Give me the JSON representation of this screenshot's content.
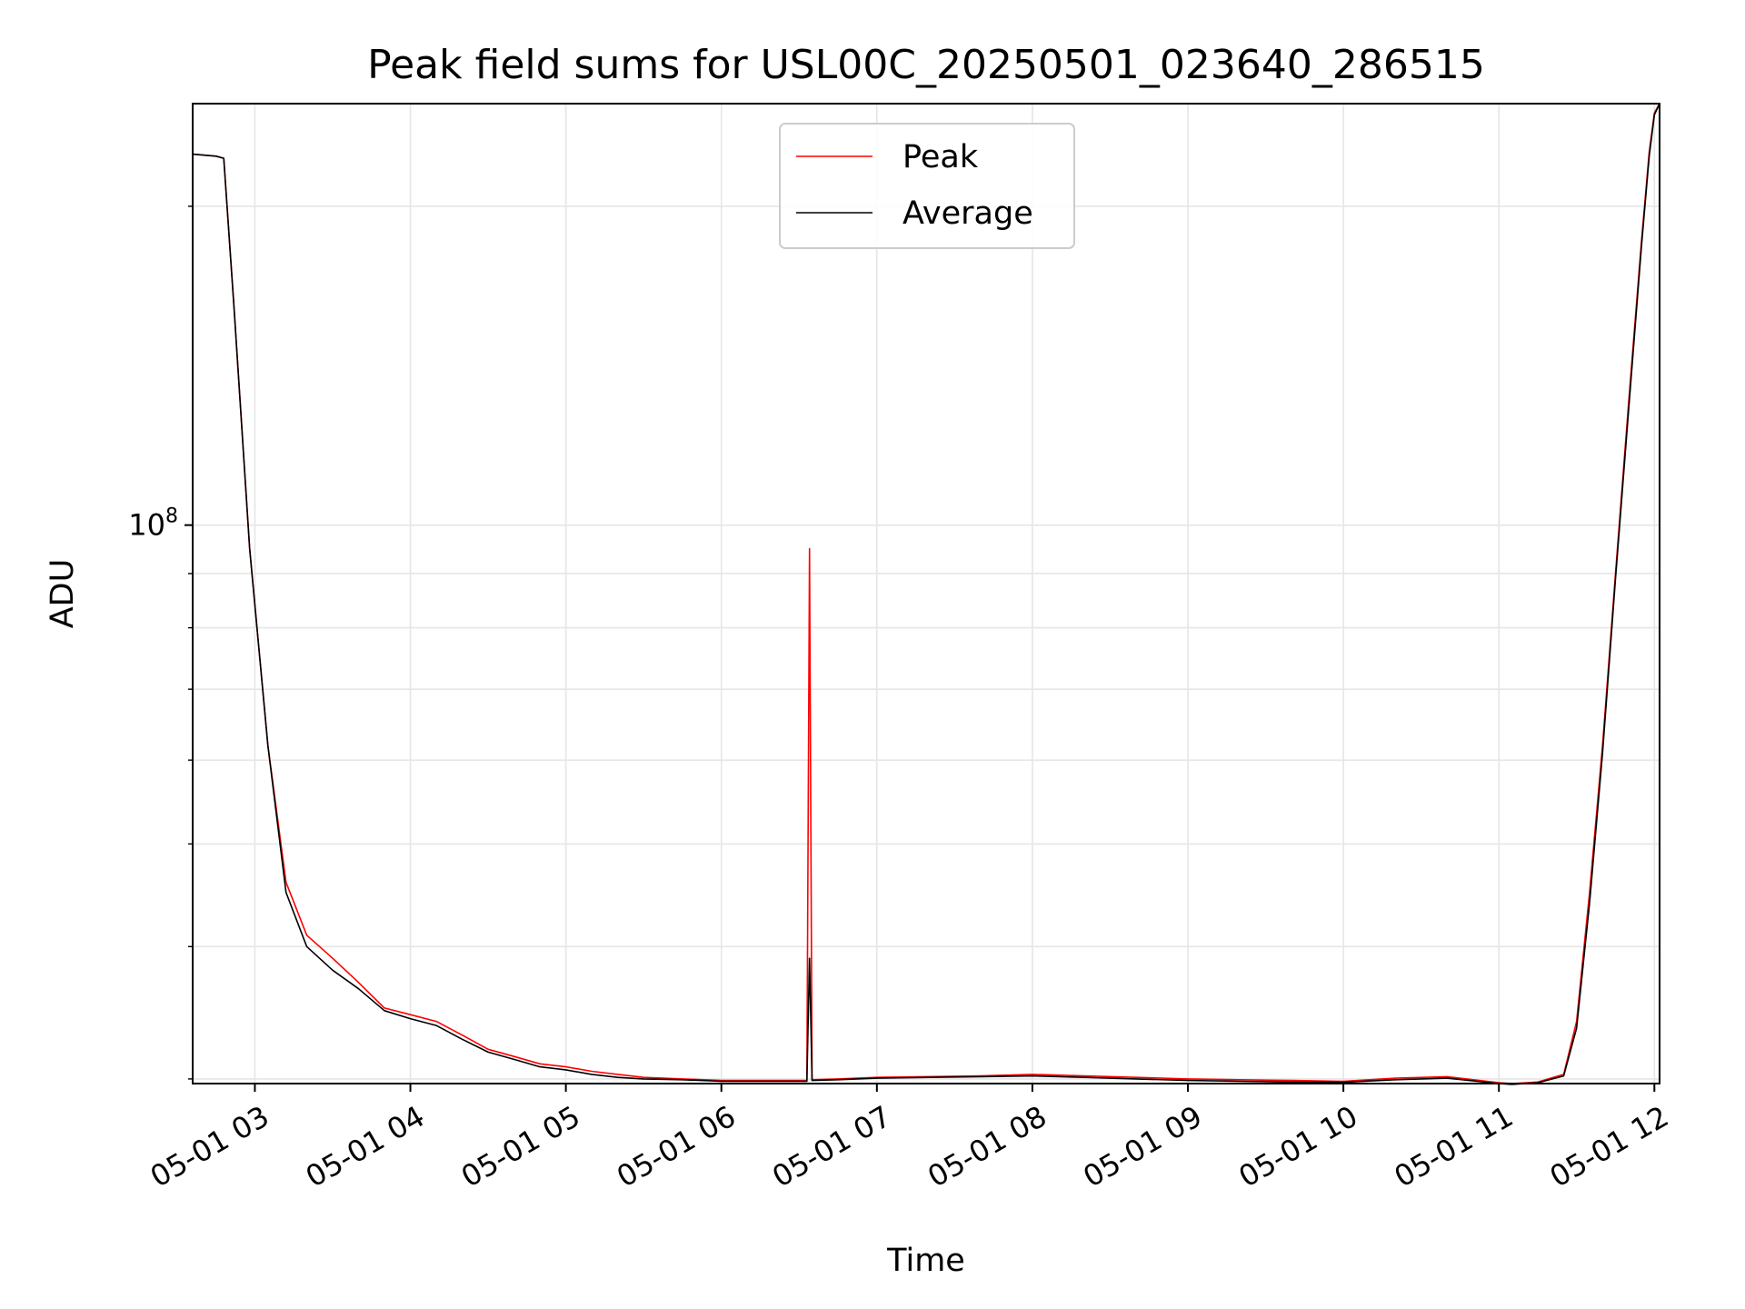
{
  "chart_data": {
    "type": "line",
    "title": "Peak field sums for USL00C_20250501_023640_286515",
    "xlabel": "Time",
    "ylabel": "ADU",
    "x_axis": {
      "type": "time",
      "range": [
        "2025-05-01 02:36",
        "2025-05-01 12:02"
      ],
      "ticks": [
        "2025-05-01 03:00",
        "2025-05-01 04:00",
        "2025-05-01 05:00",
        "2025-05-01 06:00",
        "2025-05-01 07:00",
        "2025-05-01 08:00",
        "2025-05-01 09:00",
        "2025-05-01 10:00",
        "2025-05-01 11:00",
        "2025-05-01 12:00"
      ],
      "tick_labels": [
        "05-01 03",
        "05-01 04",
        "05-01 05",
        "05-01 06",
        "05-01 07",
        "05-01 08",
        "05-01 09",
        "05-01 10",
        "05-01 11",
        "05-01 12"
      ]
    },
    "y_axis": {
      "scale": "log",
      "range": [
        29700000.0,
        250000000.0
      ],
      "major_ticks": [
        100000000
      ],
      "major_tick_labels": [
        "10^8"
      ],
      "minor_ticks": [
        30000000,
        40000000,
        50000000,
        60000000,
        70000000,
        80000000,
        90000000,
        200000000
      ]
    },
    "grid": true,
    "legend": {
      "placement": "top-center"
    },
    "series": [
      {
        "name": "Peak",
        "color": "#ff0000",
        "x": [
          "2025-05-01 02:36",
          "2025-05-01 02:45",
          "2025-05-01 02:48",
          "2025-05-01 02:52",
          "2025-05-01 02:58",
          "2025-05-01 03:05",
          "2025-05-01 03:12",
          "2025-05-01 03:20",
          "2025-05-01 03:30",
          "2025-05-01 03:40",
          "2025-05-01 03:50",
          "2025-05-01 04:00",
          "2025-05-01 04:10",
          "2025-05-01 04:20",
          "2025-05-01 04:30",
          "2025-05-01 04:40",
          "2025-05-01 04:50",
          "2025-05-01 05:00",
          "2025-05-01 05:10",
          "2025-05-01 05:20",
          "2025-05-01 05:30",
          "2025-05-01 05:45",
          "2025-05-01 06:00",
          "2025-05-01 06:15",
          "2025-05-01 06:30",
          "2025-05-01 06:33",
          "2025-05-01 06:34",
          "2025-05-01 06:35",
          "2025-05-01 06:45",
          "2025-05-01 07:00",
          "2025-05-01 07:20",
          "2025-05-01 07:40",
          "2025-05-01 08:00",
          "2025-05-01 08:20",
          "2025-05-01 08:40",
          "2025-05-01 09:00",
          "2025-05-01 09:20",
          "2025-05-01 09:40",
          "2025-05-01 10:00",
          "2025-05-01 10:20",
          "2025-05-01 10:40",
          "2025-05-01 11:00",
          "2025-05-01 11:05",
          "2025-05-01 11:15",
          "2025-05-01 11:25",
          "2025-05-01 11:30",
          "2025-05-01 11:35",
          "2025-05-01 11:40",
          "2025-05-01 11:45",
          "2025-05-01 11:50",
          "2025-05-01 11:55",
          "2025-05-01 11:58",
          "2025-05-01 12:00",
          "2025-05-01 12:02"
        ],
        "y": [
          224000000,
          223000000,
          222000000,
          160000000,
          95000000,
          62000000,
          46000000,
          41000000,
          39000000,
          37000000,
          35000000,
          34500000,
          34000000,
          33000000,
          32000000,
          31500000,
          31000000,
          30800000,
          30500000,
          30300000,
          30100000,
          30000000,
          29900000,
          29900000,
          29900000,
          29900000,
          95000000,
          29950000,
          30000000,
          30100000,
          30150000,
          30200000,
          30300000,
          30200000,
          30100000,
          30000000,
          29950000,
          29900000,
          29850000,
          30050000,
          30150000,
          29750000,
          29700000,
          29800000,
          30300000,
          34000000,
          45000000,
          62000000,
          90000000,
          130000000,
          185000000,
          225000000,
          245000000,
          250000000
        ]
      },
      {
        "name": "Average",
        "color": "#000000",
        "x": [
          "2025-05-01 02:36",
          "2025-05-01 02:45",
          "2025-05-01 02:48",
          "2025-05-01 02:52",
          "2025-05-01 02:58",
          "2025-05-01 03:05",
          "2025-05-01 03:12",
          "2025-05-01 03:20",
          "2025-05-01 03:30",
          "2025-05-01 03:40",
          "2025-05-01 03:50",
          "2025-05-01 04:00",
          "2025-05-01 04:10",
          "2025-05-01 04:20",
          "2025-05-01 04:30",
          "2025-05-01 04:40",
          "2025-05-01 04:50",
          "2025-05-01 05:00",
          "2025-05-01 05:10",
          "2025-05-01 05:20",
          "2025-05-01 05:30",
          "2025-05-01 05:45",
          "2025-05-01 06:00",
          "2025-05-01 06:15",
          "2025-05-01 06:30",
          "2025-05-01 06:33",
          "2025-05-01 06:34",
          "2025-05-01 06:35",
          "2025-05-01 06:45",
          "2025-05-01 07:00",
          "2025-05-01 07:20",
          "2025-05-01 07:40",
          "2025-05-01 08:00",
          "2025-05-01 08:20",
          "2025-05-01 08:40",
          "2025-05-01 09:00",
          "2025-05-01 09:20",
          "2025-05-01 09:40",
          "2025-05-01 10:00",
          "2025-05-01 10:20",
          "2025-05-01 10:40",
          "2025-05-01 11:00",
          "2025-05-01 11:05",
          "2025-05-01 11:15",
          "2025-05-01 11:25",
          "2025-05-01 11:30",
          "2025-05-01 11:35",
          "2025-05-01 11:40",
          "2025-05-01 11:45",
          "2025-05-01 11:50",
          "2025-05-01 11:55",
          "2025-05-01 11:58",
          "2025-05-01 12:00",
          "2025-05-01 12:02"
        ],
        "y": [
          224000000,
          223000000,
          222000000,
          160000000,
          95000000,
          62000000,
          45000000,
          40000000,
          38000000,
          36500000,
          34800000,
          34200000,
          33700000,
          32700000,
          31800000,
          31300000,
          30800000,
          30600000,
          30300000,
          30100000,
          30000000,
          29950000,
          29850000,
          29850000,
          29850000,
          29850000,
          39000000,
          29900000,
          29950000,
          30050000,
          30100000,
          30150000,
          30200000,
          30100000,
          30000000,
          29900000,
          29850000,
          29800000,
          29780000,
          29950000,
          30050000,
          29700000,
          29650000,
          29750000,
          30200000,
          33500000,
          44000000,
          61000000,
          89000000,
          128000000,
          183000000,
          223000000,
          244000000,
          250000000
        ]
      }
    ]
  }
}
